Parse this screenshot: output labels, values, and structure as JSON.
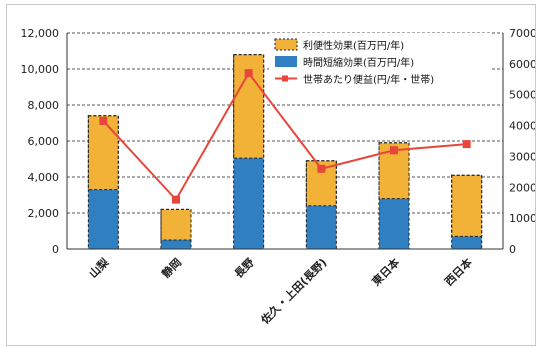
{
  "chart_data": {
    "type": "bar",
    "categories": [
      "山梨",
      "静岡",
      "長野",
      "佐久・上田(長野)",
      "東日本",
      "西日本"
    ],
    "series": [
      {
        "name": "時間短縮効果(百万円/年)",
        "axis": "left",
        "stack": "bars",
        "values": [
          3300,
          500,
          5050,
          2400,
          2800,
          700
        ],
        "color": "#2f7fc1"
      },
      {
        "name": "利便性効果(百万円/年)",
        "axis": "left",
        "stack": "bars",
        "values": [
          4100,
          1700,
          5750,
          2500,
          3100,
          3400
        ],
        "color": "#f2b137"
      },
      {
        "name": "世帯あたり便益(円/年・世帯)",
        "axis": "right",
        "type": "line",
        "values": [
          4150,
          1600,
          5700,
          2600,
          3200,
          3400
        ],
        "color": "#e8463c"
      }
    ],
    "ylim_left": [
      0,
      12000
    ],
    "yticks_left": [
      "0",
      "2,000",
      "4,000",
      "6,000",
      "8,000",
      "10,000",
      "12,000"
    ],
    "ylim_right": [
      0,
      7000
    ],
    "yticks_right": [
      "0",
      "1000",
      "2000",
      "3000",
      "4000",
      "5000",
      "6000",
      "7000"
    ],
    "legend_position": "top-right",
    "grid": "horizontal dashed"
  }
}
